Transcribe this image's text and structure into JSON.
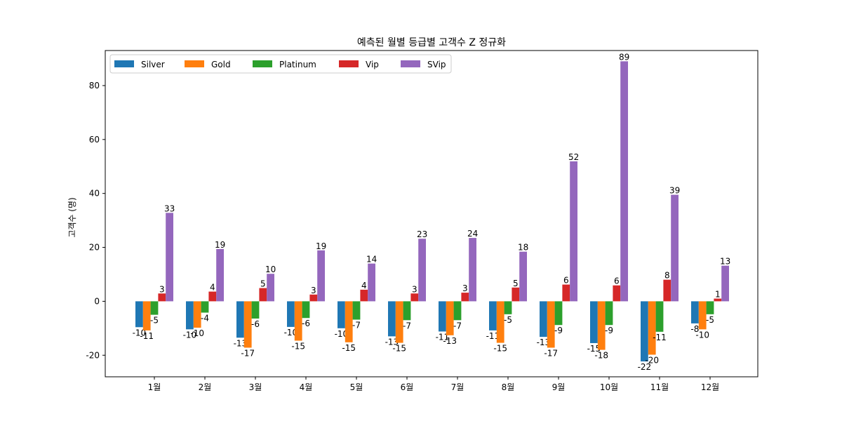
{
  "chart_data": {
    "type": "bar",
    "title": "예측된 월별 등급별 고객수 Z 정규화",
    "xlabel": "",
    "ylabel": "고객수 (명)",
    "ylim": [
      -28,
      93
    ],
    "yticks": [
      -20,
      0,
      20,
      40,
      60,
      80
    ],
    "categories": [
      "1월",
      "2월",
      "3월",
      "4월",
      "5월",
      "6월",
      "7월",
      "8월",
      "9월",
      "10월",
      "11월",
      "12월"
    ],
    "legend_position": "top-left",
    "series": [
      {
        "name": "Silver",
        "color": "#1f77b4",
        "values": [
          -9.6,
          -10.4,
          -13.5,
          -9.5,
          -10.0,
          -13.0,
          -11.2,
          -10.8,
          -13.2,
          -15.5,
          -22.3,
          -8.2
        ],
        "labels": [
          "-10",
          "-10",
          "-13",
          "-10",
          "-10",
          "-13",
          "-11",
          "-11",
          "-13",
          "-15",
          "-22",
          "-8"
        ]
      },
      {
        "name": "Gold",
        "color": "#ff7f0e",
        "values": [
          -10.8,
          -9.8,
          -17.2,
          -14.6,
          -15.2,
          -15.4,
          -12.6,
          -15.4,
          -17.2,
          -18.0,
          -19.8,
          -10.4
        ],
        "labels": [
          "-11",
          "-10",
          "-17",
          "-15",
          "-15",
          "-15",
          "-13",
          "-15",
          "-17",
          "-18",
          "-20",
          "-10"
        ]
      },
      {
        "name": "Platinum",
        "color": "#2ca02c",
        "values": [
          -5.0,
          -4.2,
          -6.4,
          -6.2,
          -6.8,
          -7.0,
          -7.0,
          -4.8,
          -8.8,
          -8.8,
          -11.3,
          -4.8
        ],
        "labels": [
          "-5",
          "-4",
          "-6",
          "-6",
          "-7",
          "-7",
          "-7",
          "-5",
          "-9",
          "-9",
          "-11",
          "-5"
        ]
      },
      {
        "name": "Vip",
        "color": "#d62728",
        "values": [
          2.9,
          3.6,
          4.9,
          2.5,
          4.3,
          2.9,
          3.2,
          5.1,
          6.2,
          5.9,
          8.0,
          1.0
        ],
        "labels": [
          "3",
          "4",
          "5",
          "3",
          "4",
          "3",
          "3",
          "5",
          "6",
          "6",
          "8",
          "1"
        ]
      },
      {
        "name": "SVip",
        "color": "#9467bd",
        "values": [
          32.8,
          19.4,
          10.2,
          18.9,
          14.0,
          23.2,
          23.5,
          18.4,
          51.9,
          89.0,
          39.5,
          13.2
        ],
        "labels": [
          "33",
          "19",
          "10",
          "19",
          "14",
          "23",
          "24",
          "18",
          "52",
          "89",
          "39",
          "13"
        ]
      }
    ]
  }
}
